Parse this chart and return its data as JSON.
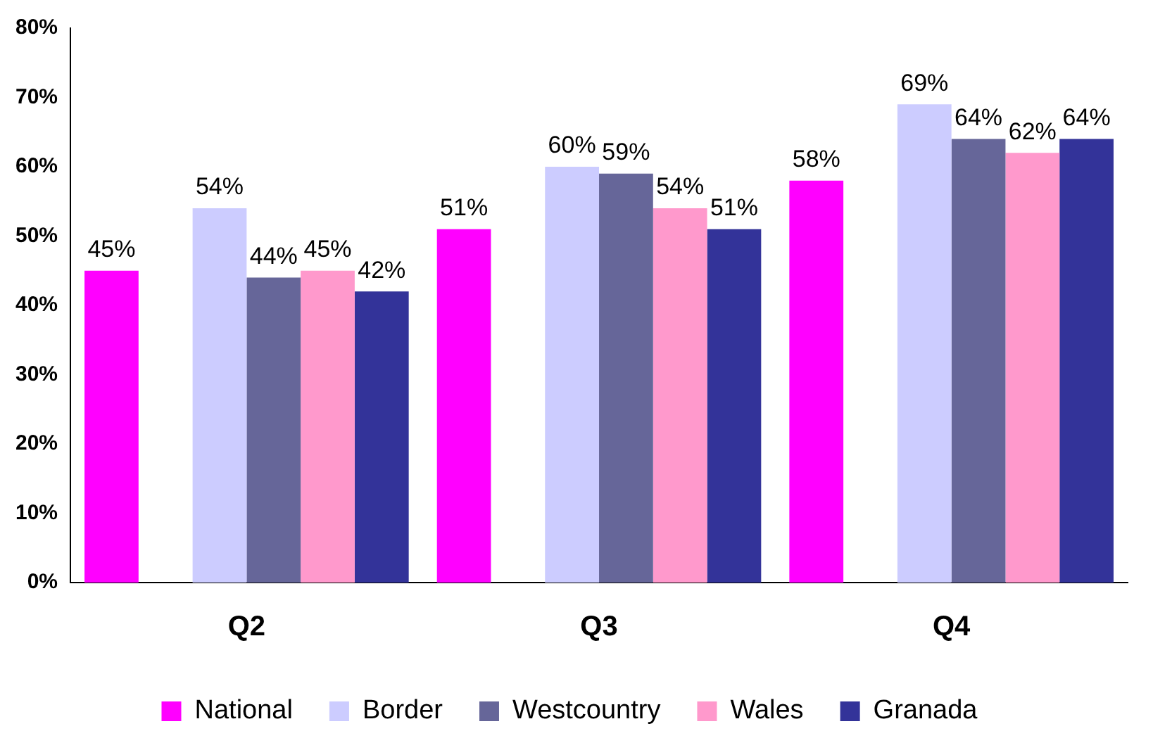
{
  "chart_data": {
    "type": "bar",
    "categories": [
      "Q2",
      "Q3",
      "Q4"
    ],
    "series": [
      {
        "name": "National",
        "color": "#ff00ff",
        "values": [
          45,
          51,
          58
        ],
        "value_labels": [
          "45%",
          "51%",
          "58%"
        ]
      },
      {
        "name": "Border",
        "color": "#ccccff",
        "values": [
          54,
          60,
          69
        ],
        "value_labels": [
          "54%",
          "60%",
          "69%"
        ]
      },
      {
        "name": "Westcountry",
        "color": "#666699",
        "values": [
          44,
          59,
          64
        ],
        "value_labels": [
          "44%",
          "59%",
          "64%"
        ]
      },
      {
        "name": "Wales",
        "color": "#ff99cc",
        "values": [
          45,
          54,
          62
        ],
        "value_labels": [
          "45%",
          "54%",
          "62%"
        ]
      },
      {
        "name": "Granada",
        "color": "#333399",
        "values": [
          42,
          51,
          64
        ],
        "value_labels": [
          "42%",
          "51%",
          "64%"
        ]
      }
    ],
    "ylim": [
      0,
      80
    ],
    "yticks": [
      {
        "value": 0,
        "label": "0%"
      },
      {
        "value": 10,
        "label": "10%"
      },
      {
        "value": 20,
        "label": "20%"
      },
      {
        "value": 30,
        "label": "30%"
      },
      {
        "value": 40,
        "label": "40%"
      },
      {
        "value": 50,
        "label": "50%"
      },
      {
        "value": 60,
        "label": "60%"
      },
      {
        "value": 70,
        "label": "70%"
      },
      {
        "value": 80,
        "label": "80%"
      }
    ],
    "grid": false,
    "legend": "bottom"
  }
}
